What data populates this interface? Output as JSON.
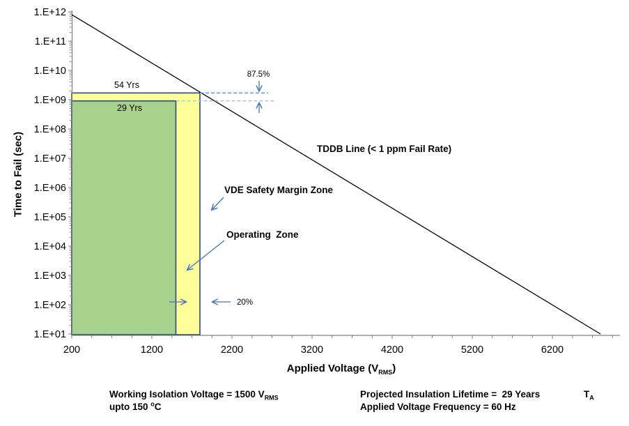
{
  "chart_data": {
    "type": "line",
    "title": "",
    "ylabel": "Time to Fail (sec)",
    "xlabel": {
      "prefix": "Applied Voltage (V",
      "sub": "RMS",
      "suffix": ")"
    },
    "x_axis": {
      "min": 200,
      "max": 7000,
      "tick_values": [
        200,
        1200,
        2200,
        3200,
        4200,
        5200,
        6200
      ],
      "tick_labels": [
        "200",
        "1200",
        "2200",
        "3200",
        "4200",
        "5200",
        "6200"
      ],
      "minor_tick_step": 250
    },
    "y_axis": {
      "scale": "log",
      "min": 10.0,
      "max": 1000000000000.0,
      "tick_labels": [
        "1.E+01",
        "1.E+02",
        "1.E+03",
        "1.E+04",
        "1.E+05",
        "1.E+06",
        "1.E+07",
        "1.E+08",
        "1.E+09",
        "1.E+10",
        "1.E+11",
        "1.E+12"
      ],
      "tick_exponents": [
        1,
        2,
        3,
        4,
        5,
        6,
        7,
        8,
        9,
        10,
        11,
        12
      ]
    },
    "series": [
      {
        "name": "TDDB Line (< 1 ppm Fail Rate)",
        "points": [
          {
            "v": 200,
            "t": 800000000000.0
          },
          {
            "v": 6800,
            "t": 10.0
          }
        ]
      }
    ],
    "zones": [
      {
        "id": "vde-safety-margin-zone",
        "name": "VDE Safety Margin Zone",
        "v_min": 200,
        "v_max": 1800,
        "t_min": 10.0,
        "t_max": 1700000000.0,
        "lifetime_label": "54 Yrs",
        "fill": "#FFFF99"
      },
      {
        "id": "operating-zone",
        "name": "Operating  Zone",
        "v_min": 200,
        "v_max": 1500,
        "t_min": 10.0,
        "t_max": 910000000.0,
        "lifetime_label": "29 Yrs",
        "fill": "#A9D18E"
      }
    ],
    "annotations": {
      "yrs54": "54 Yrs",
      "yrs29": "29 Yrs",
      "lifetime_margin_pct": "87.5%",
      "voltage_margin_pct": "20%",
      "tddb_label": "TDDB Line (< 1 ppm Fail Rate)",
      "vde_zone_label": "VDE Safety Margin Zone",
      "operating_zone_label": "Operating  Zone"
    }
  },
  "footer": {
    "left_line1_prefix": "Working Isolation Voltage = 1500 V",
    "left_line1_sub": "RMS",
    "left_line2_prefix": "upto 150 ",
    "left_line2_sup": "o",
    "left_line2_suffix": "C",
    "right_line1": "Projected Insulation Lifetime =  29 Years",
    "right_line2": "Applied Voltage Frequency = 60 Hz",
    "ta_prefix": "T",
    "ta_sub": "A"
  },
  "colors": {
    "zone_green": "#A9D18E",
    "zone_yellow": "#FFFF99",
    "zone_border": "#2A4A77",
    "tddb_line": "#000000",
    "axis": "#808080",
    "tick_label": "#000000",
    "arrow_blue": "#4472C4",
    "dashed_upper": "#5B9BD5",
    "dashed_lower": "#9DC3E6"
  }
}
